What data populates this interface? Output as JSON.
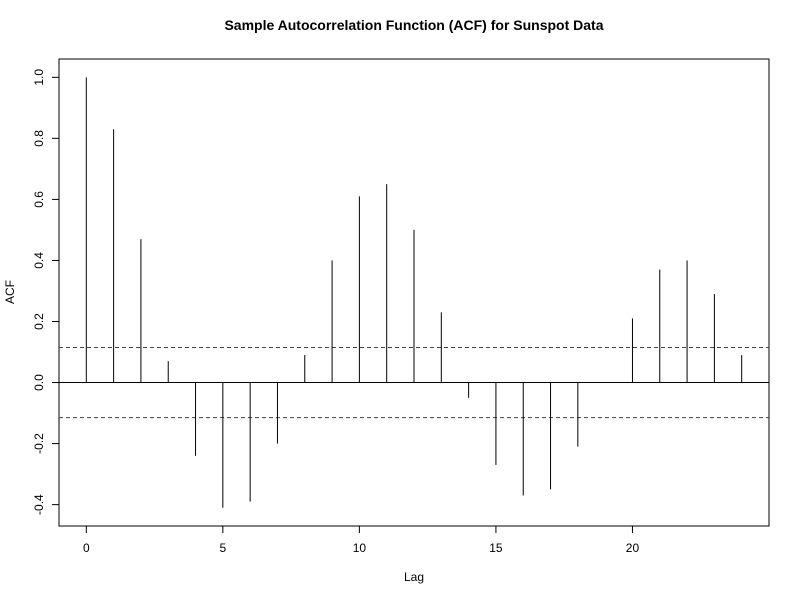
{
  "chart_data": {
    "type": "bar",
    "title": "Sample Autocorrelation Function (ACF) for Sunspot Data",
    "xlabel": "Lag",
    "ylabel": "ACF",
    "xlim": [
      -1,
      25
    ],
    "ylim": [
      -0.47,
      1.06
    ],
    "x_ticks": [
      0,
      5,
      10,
      15,
      20
    ],
    "y_ticks": [
      -0.4,
      -0.2,
      0.0,
      0.2,
      0.4,
      0.6,
      0.8,
      1.0
    ],
    "y_tick_labels": [
      "-0.4",
      "-0.2",
      "0.0",
      "0.2",
      "0.4",
      "0.6",
      "0.8",
      "1.0"
    ],
    "lags": [
      0,
      1,
      2,
      3,
      4,
      5,
      6,
      7,
      8,
      9,
      10,
      11,
      12,
      13,
      14,
      15,
      16,
      17,
      18,
      19,
      20,
      21,
      22,
      23,
      24
    ],
    "acf": [
      1.0,
      0.83,
      0.47,
      0.07,
      -0.24,
      -0.41,
      -0.39,
      -0.2,
      0.09,
      0.4,
      0.61,
      0.65,
      0.5,
      0.23,
      -0.05,
      -0.27,
      -0.37,
      -0.35,
      -0.21,
      0.0,
      0.21,
      0.37,
      0.4,
      0.29,
      0.09
    ],
    "confidence_bound": 0.115,
    "confidence_color": "#3333cc",
    "spike_color": "#000000"
  }
}
